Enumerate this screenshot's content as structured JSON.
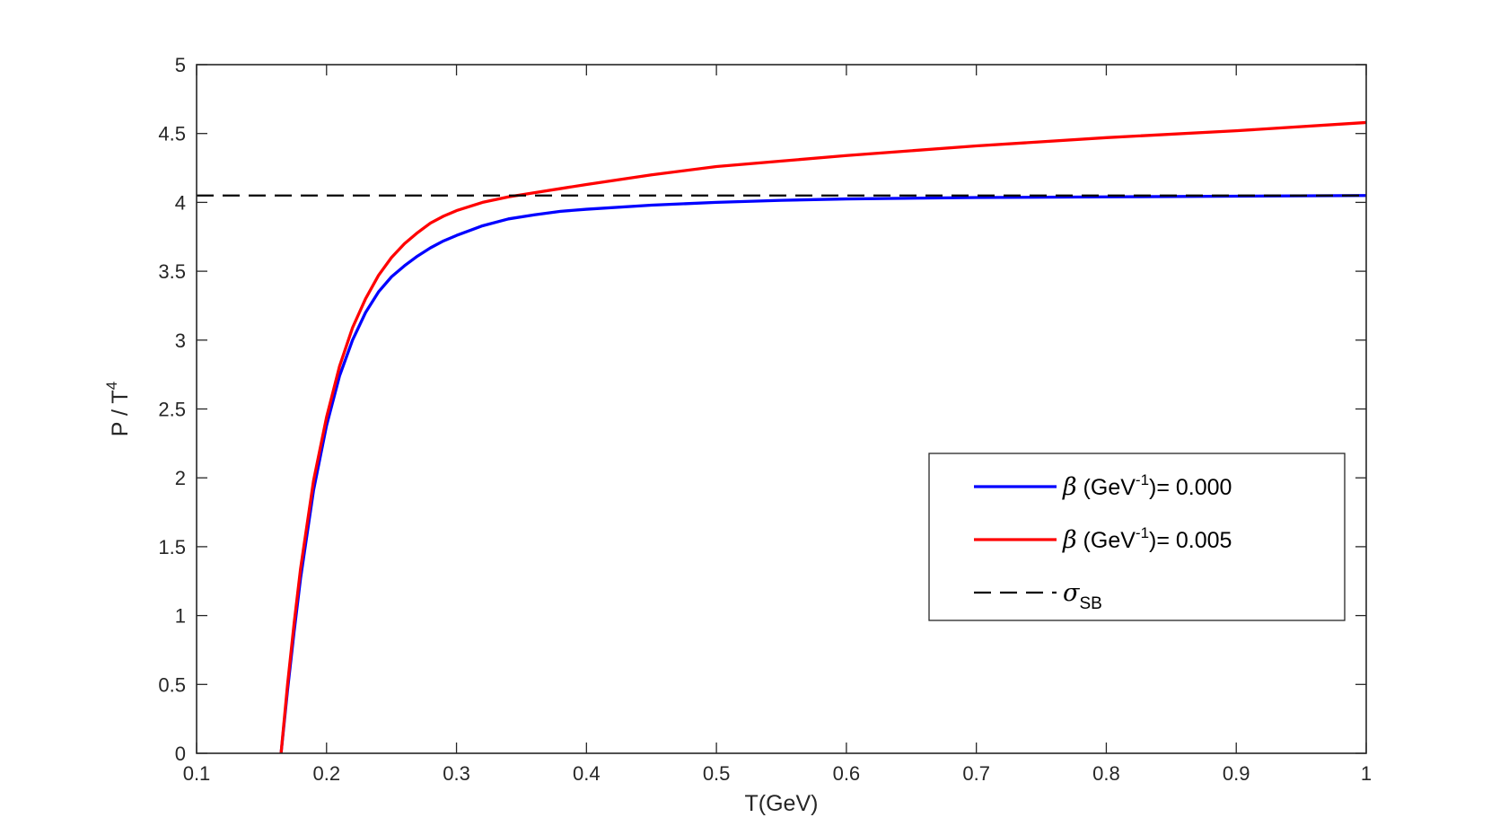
{
  "chart_data": {
    "type": "line",
    "xlabel": "T(GeV)",
    "ylabel": {
      "base": "P / T",
      "sup": "4"
    },
    "xlim": [
      0.1,
      1
    ],
    "ylim": [
      0,
      5
    ],
    "xticks": [
      "0.1",
      "0.2",
      "0.3",
      "0.4",
      "0.5",
      "0.6",
      "0.7",
      "0.8",
      "0.9",
      "1"
    ],
    "yticks": [
      "0",
      "0.5",
      "1",
      "1.5",
      "2",
      "2.5",
      "3",
      "3.5",
      "4",
      "4.5",
      "5"
    ],
    "grid": false,
    "legend_position": "lower-right",
    "series": [
      {
        "name": "β (GeV-1)= 0.000",
        "legend": {
          "symbol": "β",
          "pre": " (GeV",
          "sup": "-1",
          "post": ")= 0.000"
        },
        "color": "#0000ff",
        "style": "solid",
        "x": [
          0.165,
          0.17,
          0.175,
          0.18,
          0.19,
          0.2,
          0.21,
          0.22,
          0.23,
          0.24,
          0.25,
          0.26,
          0.27,
          0.28,
          0.29,
          0.3,
          0.32,
          0.34,
          0.36,
          0.38,
          0.4,
          0.45,
          0.5,
          0.55,
          0.6,
          0.7,
          0.8,
          0.9,
          1.0
        ],
        "y": [
          0.0,
          0.46,
          0.88,
          1.27,
          1.91,
          2.38,
          2.74,
          3.0,
          3.2,
          3.35,
          3.46,
          3.54,
          3.61,
          3.67,
          3.72,
          3.76,
          3.83,
          3.88,
          3.91,
          3.935,
          3.95,
          3.98,
          4.0,
          4.015,
          4.025,
          4.035,
          4.04,
          4.045,
          4.05
        ]
      },
      {
        "name": "β (GeV-1)= 0.005",
        "legend": {
          "symbol": "β",
          "pre": " (GeV",
          "sup": "-1",
          "post": ")= 0.005"
        },
        "color": "#ff0000",
        "style": "solid",
        "x": [
          0.165,
          0.17,
          0.175,
          0.18,
          0.19,
          0.2,
          0.21,
          0.22,
          0.23,
          0.24,
          0.25,
          0.26,
          0.27,
          0.28,
          0.29,
          0.3,
          0.32,
          0.34,
          0.36,
          0.38,
          0.4,
          0.45,
          0.5,
          0.55,
          0.6,
          0.7,
          0.8,
          0.9,
          1.0
        ],
        "y": [
          0.0,
          0.5,
          0.94,
          1.34,
          1.98,
          2.44,
          2.81,
          3.09,
          3.3,
          3.47,
          3.6,
          3.7,
          3.78,
          3.85,
          3.9,
          3.94,
          4.0,
          4.04,
          4.07,
          4.1,
          4.13,
          4.2,
          4.26,
          4.3,
          4.34,
          4.41,
          4.47,
          4.52,
          4.58
        ]
      },
      {
        "name": "σSB",
        "legend": {
          "symbol": "σ",
          "sub": "SB"
        },
        "color": "#000000",
        "style": "dashed",
        "x": [
          0.1,
          1.0
        ],
        "y": [
          4.05,
          4.05
        ]
      }
    ]
  }
}
